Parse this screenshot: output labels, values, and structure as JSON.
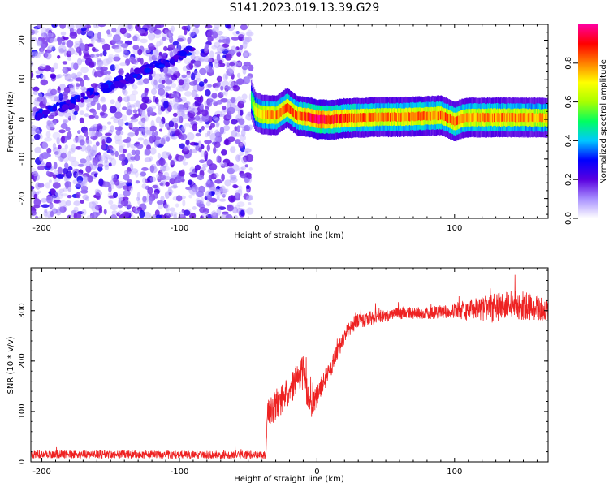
{
  "figure_title": "S141.2023.019.13.39.G29",
  "chart_data": [
    {
      "type": "heatmap",
      "xlabel": "Height of straight line (km)",
      "ylabel": "Frequency (Hz)",
      "xlim": [
        -208,
        168
      ],
      "ylim": [
        -25,
        24
      ],
      "xticks": [
        -200,
        -100,
        0,
        100
      ],
      "yticks": [
        -20,
        -10,
        0,
        10,
        20
      ],
      "colorbar": {
        "label": "Normalized spectral amplitude",
        "range": [
          0,
          1
        ],
        "ticks": [
          "0.0",
          "0.2",
          "0.4",
          "0.6",
          "0.8"
        ],
        "tick_values": [
          0,
          0.2,
          0.4,
          0.6,
          0.8
        ],
        "colormap": [
          "#ffffff",
          "#a890ff",
          "#5a00e0",
          "#0000ff",
          "#00c8ff",
          "#00ff60",
          "#a8ff00",
          "#ffff00",
          "#ff8000",
          "#ff0000",
          "#ff00a0"
        ]
      },
      "noise_region_x": [
        -208,
        -48
      ],
      "diagonal_streak": {
        "x": [
          -205,
          -180,
          -160,
          -140,
          -120,
          -100,
          -90
        ],
        "freq": [
          1,
          4,
          7,
          10,
          13,
          16,
          18
        ]
      },
      "tone": {
        "x": [
          -48,
          -45,
          -40,
          -30,
          -22,
          -15,
          -5,
          0,
          10,
          20,
          30,
          45,
          60,
          75,
          90,
          95,
          100,
          105,
          110,
          130,
          150,
          168
        ],
        "freq": [
          5,
          2,
          1.2,
          1,
          3,
          1,
          0.5,
          0,
          -0.1,
          0.3,
          0.4,
          0.6,
          0.6,
          0.8,
          1,
          0.3,
          -0.6,
          0.2,
          0.5,
          0.5,
          0.5,
          0.4
        ],
        "amplitude": [
          0.55,
          0.7,
          0.75,
          0.8,
          0.85,
          0.8,
          0.9,
          0.95,
          0.9,
          0.85,
          0.82,
          0.8,
          0.8,
          0.82,
          0.8,
          0.8,
          0.82,
          0.8,
          0.78,
          0.8,
          0.78,
          0.75
        ]
      }
    },
    {
      "type": "line",
      "xlabel": "Height of straight line (km)",
      "ylabel": "SNR (10 * v/v)",
      "xlim": [
        -208,
        168
      ],
      "ylim": [
        0,
        385
      ],
      "xticks": [
        -200,
        -100,
        0,
        100
      ],
      "yticks": [
        0,
        100,
        200,
        300
      ],
      "color": "#ee2222",
      "series": [
        {
          "x": [
            -208,
            -150,
            -100,
            -60,
            -37,
            -36,
            -30,
            -20,
            -15,
            -10,
            -5,
            0,
            5,
            10,
            15,
            20,
            25,
            30,
            40,
            50,
            60,
            80,
            100,
            110,
            120,
            130,
            140,
            150,
            160,
            168
          ],
          "y": [
            15,
            15,
            14,
            14,
            14,
            100,
            110,
            140,
            165,
            175,
            110,
            130,
            160,
            185,
            220,
            250,
            270,
            280,
            285,
            290,
            295,
            295,
            300,
            300,
            305,
            305,
            310,
            310,
            305,
            300
          ],
          "noise_amplitude": [
            8,
            8,
            8,
            8,
            8,
            30,
            30,
            30,
            30,
            35,
            25,
            25,
            20,
            18,
            18,
            15,
            15,
            15,
            15,
            12,
            12,
            12,
            15,
            20,
            25,
            30,
            30,
            28,
            25,
            22
          ]
        }
      ]
    }
  ]
}
